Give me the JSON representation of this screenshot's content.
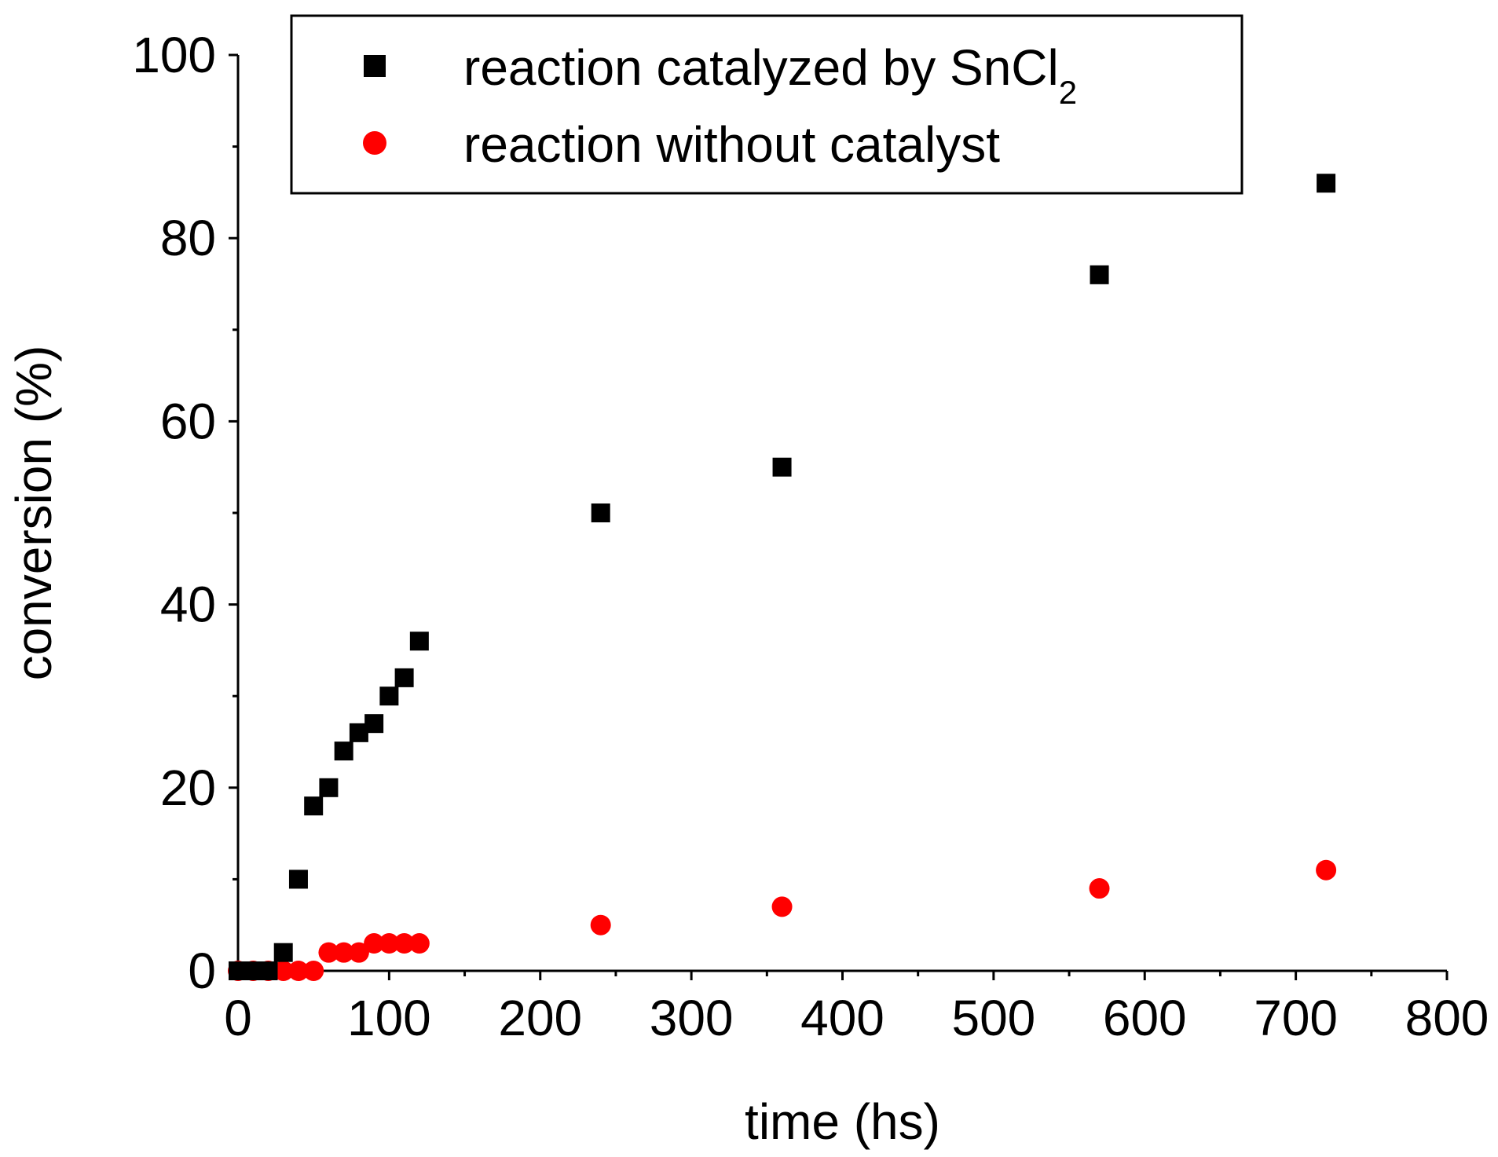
{
  "chart_data": {
    "type": "scatter",
    "xlabel": "time (hs)",
    "ylabel": "conversion (%)",
    "xlim": [
      0,
      800
    ],
    "ylim": [
      0,
      100
    ],
    "x_ticks": [
      0,
      100,
      200,
      300,
      400,
      500,
      600,
      700,
      800
    ],
    "y_ticks": [
      0,
      20,
      40,
      60,
      80,
      100
    ],
    "grid": false,
    "legend_position": "top",
    "series": [
      {
        "name": "reaction catalyzed by SnCl",
        "name_subscript": "2",
        "marker": "square",
        "color": "#000000",
        "x": [
          0,
          10,
          20,
          30,
          40,
          50,
          60,
          70,
          80,
          90,
          100,
          110,
          120,
          240,
          360,
          570,
          720
        ],
        "y": [
          0,
          0,
          0,
          2,
          10,
          18,
          20,
          24,
          26,
          27,
          30,
          32,
          36,
          50,
          55,
          76,
          86
        ]
      },
      {
        "name": "reaction without catalyst",
        "marker": "circle",
        "color": "#ff0000",
        "x": [
          0,
          10,
          20,
          30,
          40,
          50,
          60,
          70,
          80,
          90,
          100,
          110,
          120,
          240,
          360,
          570,
          720
        ],
        "y": [
          0,
          0,
          0,
          0,
          0,
          0,
          2,
          2,
          2,
          3,
          3,
          3,
          3,
          5,
          7,
          9,
          11
        ]
      }
    ]
  }
}
